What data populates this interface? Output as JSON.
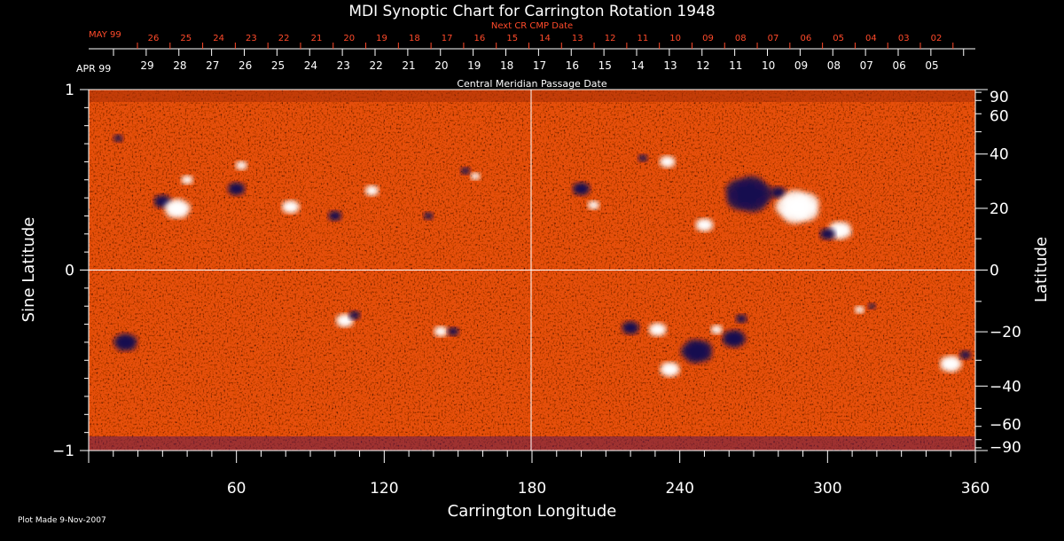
{
  "chart_data": {
    "type": "heatmap",
    "title": "MDI Synoptic Chart for Carrington Rotation 1948",
    "xlabel": "Carrington Longitude",
    "ylabel_left": "Sine Latitude",
    "ylabel_right": "Latitude",
    "xlim": [
      0,
      360
    ],
    "ylim": [
      -1,
      1
    ],
    "x_ticks": [
      60,
      120,
      180,
      240,
      300,
      360
    ],
    "y_ticks_left": [
      {
        "v": 1,
        "label": "1"
      },
      {
        "v": 0,
        "label": "0"
      },
      {
        "v": -1,
        "label": "−1"
      }
    ],
    "y_ticks_right": [
      {
        "v": 90,
        "label": "90"
      },
      {
        "v": 60,
        "label": "60"
      },
      {
        "v": 40,
        "label": "40"
      },
      {
        "v": 20,
        "label": "20"
      },
      {
        "v": 0,
        "label": "0"
      },
      {
        "v": -20,
        "label": "−20"
      },
      {
        "v": -40,
        "label": "−40"
      },
      {
        "v": -60,
        "label": "−60"
      },
      {
        "v": -90,
        "label": "−90"
      }
    ],
    "cmp_axis": {
      "month_label": "APR 99",
      "label": "Central Meridian Passage Date",
      "days": [
        "29",
        "28",
        "27",
        "26",
        "25",
        "24",
        "23",
        "22",
        "21",
        "20",
        "19",
        "18",
        "17",
        "16",
        "15",
        "14",
        "13",
        "12",
        "11",
        "10",
        "09",
        "08",
        "07",
        "06",
        "05"
      ]
    },
    "next_cmp_axis": {
      "month_label": "MAY 99",
      "label": "Next CR CMP Date",
      "days": [
        "26",
        "25",
        "24",
        "23",
        "22",
        "21",
        "20",
        "19",
        "18",
        "17",
        "16",
        "15",
        "14",
        "13",
        "12",
        "11",
        "10",
        "09",
        "08",
        "07",
        "06",
        "05",
        "04",
        "03",
        "02"
      ]
    },
    "regions": [
      {
        "lon": 30,
        "sinlat": 0.38,
        "pol": "neg",
        "size": 9
      },
      {
        "lon": 36,
        "sinlat": 0.34,
        "pol": "pos",
        "size": 13
      },
      {
        "lon": 40,
        "sinlat": 0.5,
        "pol": "pos",
        "size": 6
      },
      {
        "lon": 12,
        "sinlat": 0.73,
        "pol": "neg",
        "size": 5
      },
      {
        "lon": 62,
        "sinlat": 0.58,
        "pol": "pos",
        "size": 6
      },
      {
        "lon": 82,
        "sinlat": 0.35,
        "pol": "pos",
        "size": 9
      },
      {
        "lon": 100,
        "sinlat": 0.3,
        "pol": "neg",
        "size": 7
      },
      {
        "lon": 115,
        "sinlat": 0.44,
        "pol": "pos",
        "size": 7
      },
      {
        "lon": 138,
        "sinlat": 0.3,
        "pol": "neg",
        "size": 5
      },
      {
        "lon": 153,
        "sinlat": 0.55,
        "pol": "neg",
        "size": 5
      },
      {
        "lon": 157,
        "sinlat": 0.52,
        "pol": "pos",
        "size": 5
      },
      {
        "lon": 205,
        "sinlat": 0.36,
        "pol": "pos",
        "size": 6
      },
      {
        "lon": 225,
        "sinlat": 0.62,
        "pol": "neg",
        "size": 5
      },
      {
        "lon": 235,
        "sinlat": 0.6,
        "pol": "pos",
        "size": 8
      },
      {
        "lon": 250,
        "sinlat": 0.25,
        "pol": "pos",
        "size": 9
      },
      {
        "lon": 268,
        "sinlat": 0.42,
        "pol": "neg",
        "size": 24
      },
      {
        "lon": 280,
        "sinlat": 0.43,
        "pol": "neg",
        "size": 8
      },
      {
        "lon": 288,
        "sinlat": 0.35,
        "pol": "pos",
        "size": 22
      },
      {
        "lon": 305,
        "sinlat": 0.22,
        "pol": "pos",
        "size": 12
      },
      {
        "lon": 300,
        "sinlat": 0.2,
        "pol": "neg",
        "size": 8
      },
      {
        "lon": 200,
        "sinlat": 0.45,
        "pol": "neg",
        "size": 9
      },
      {
        "lon": 104,
        "sinlat": -0.28,
        "pol": "pos",
        "size": 9
      },
      {
        "lon": 108,
        "sinlat": -0.25,
        "pol": "neg",
        "size": 6
      },
      {
        "lon": 143,
        "sinlat": -0.34,
        "pol": "pos",
        "size": 7
      },
      {
        "lon": 148,
        "sinlat": -0.34,
        "pol": "neg",
        "size": 6
      },
      {
        "lon": 220,
        "sinlat": -0.32,
        "pol": "neg",
        "size": 9
      },
      {
        "lon": 231,
        "sinlat": -0.33,
        "pol": "pos",
        "size": 9
      },
      {
        "lon": 247,
        "sinlat": -0.45,
        "pol": "neg",
        "size": 16
      },
      {
        "lon": 236,
        "sinlat": -0.55,
        "pol": "pos",
        "size": 10
      },
      {
        "lon": 262,
        "sinlat": -0.38,
        "pol": "neg",
        "size": 12
      },
      {
        "lon": 265,
        "sinlat": -0.27,
        "pol": "neg",
        "size": 6
      },
      {
        "lon": 255,
        "sinlat": -0.33,
        "pol": "pos",
        "size": 6
      },
      {
        "lon": 313,
        "sinlat": -0.22,
        "pol": "pos",
        "size": 5
      },
      {
        "lon": 318,
        "sinlat": -0.2,
        "pol": "neg",
        "size": 4
      },
      {
        "lon": 350,
        "sinlat": -0.52,
        "pol": "pos",
        "size": 11
      },
      {
        "lon": 356,
        "sinlat": -0.47,
        "pol": "neg",
        "size": 6
      },
      {
        "lon": 15,
        "sinlat": -0.4,
        "pol": "neg",
        "size": 12
      },
      {
        "lon": 60,
        "sinlat": 0.45,
        "pol": "neg",
        "size": 9
      }
    ],
    "colors": {
      "background": "#e84a10",
      "positive": "#ffffff",
      "negative": "#1a0a50",
      "annotation_red": "#ff4a2a"
    }
  },
  "footer": {
    "plot_made": "Plot Made  9-Nov-2007"
  }
}
